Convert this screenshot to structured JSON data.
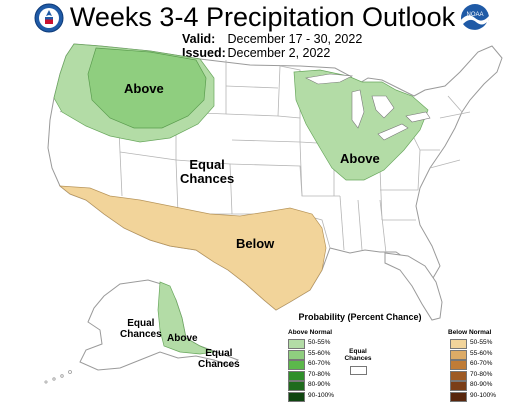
{
  "header": {
    "title": "Weeks 3-4 Precipitation Outlook",
    "valid_label": "Valid:",
    "valid_value": "December 17 - 30, 2022",
    "issued_label": "Issued:",
    "issued_value": "December 2, 2022",
    "logo_left": "doc-seal-icon",
    "logo_right": "noaa-logo-icon",
    "logo_right_text": "NOAA"
  },
  "regions": {
    "northwest_above": "Above",
    "greatlakes_above": "Above",
    "central_equal_line1": "Equal",
    "central_equal_line2": "Chances",
    "south_below": "Below",
    "alaska_equal_line1": "Equal",
    "alaska_equal_line2": "Chances",
    "alaska_above": "Above",
    "alaska_se_equal_line1": "Equal",
    "alaska_se_equal_line2": "Chances"
  },
  "legend": {
    "title": "Probability (Percent Chance)",
    "above_header": "Above Normal",
    "below_header": "Below Normal",
    "equal_line1": "Equal",
    "equal_line2": "Chances",
    "bins": [
      "50-55%",
      "55-60%",
      "60-70%",
      "70-80%",
      "80-90%",
      "90-100%"
    ],
    "above_colors": [
      "#b3dca6",
      "#8fce7f",
      "#5cb84b",
      "#2f8f2a",
      "#1f6b1d",
      "#0f4510"
    ],
    "below_colors": [
      "#f2d49a",
      "#ddab66",
      "#c07c37",
      "#9e5a24",
      "#7b3e17",
      "#58260d"
    ]
  },
  "colors": {
    "above_55": "#b3dca6",
    "above_60": "#8fce7f",
    "below_55": "#f2d49a",
    "boundary": "#b5b5b5",
    "noaa_blue": "#1f5aa6"
  }
}
